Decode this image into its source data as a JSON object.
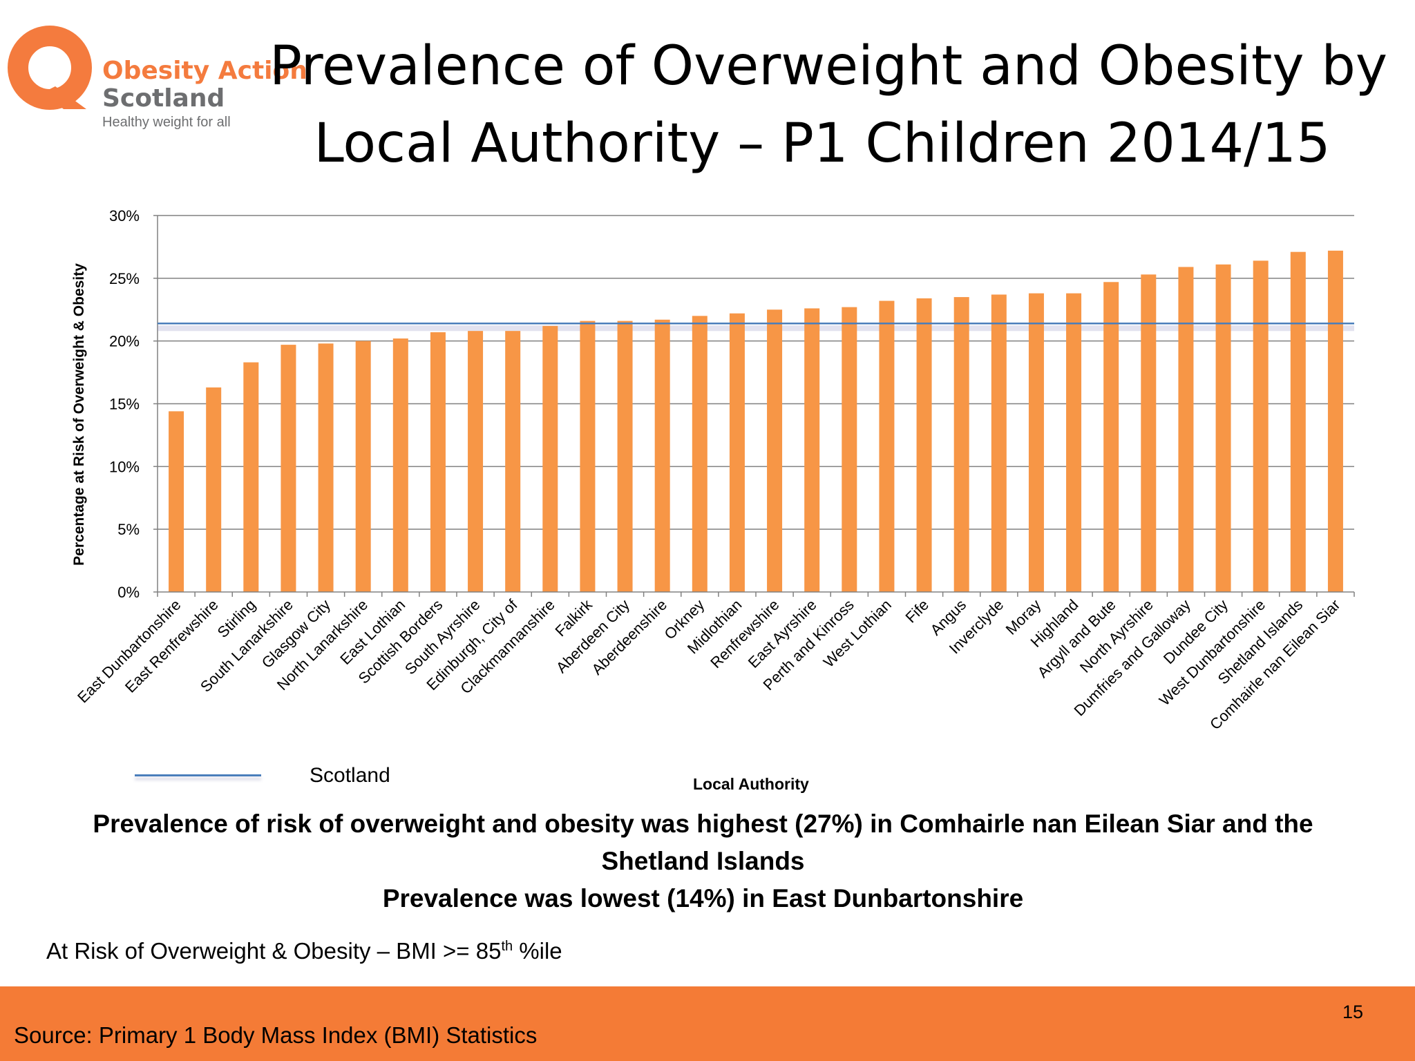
{
  "logo": {
    "name_line1": "Obesity Action",
    "name_line2": "Scotland",
    "tagline": "Healthy weight for all"
  },
  "title": {
    "line1": "Prevalence of Overweight and Obesity by",
    "line2": "Local Authority – P1 Children 2014/15"
  },
  "chart_data": {
    "type": "bar",
    "title": "Prevalence of Overweight and Obesity by Local Authority – P1 Children 2014/15",
    "xlabel": "Local Authority",
    "ylabel": "Percentage at Risk of Overweight & Obesity",
    "ylim": [
      0,
      30
    ],
    "yticks": [
      "0%",
      "5%",
      "10%",
      "15%",
      "20%",
      "25%",
      "30%"
    ],
    "grid": true,
    "categories": [
      "East Dunbartonshire",
      "East Renfrewshire",
      "Stirling",
      "South Lanarkshire",
      "Glasgow City",
      "North Lanarkshire",
      "East Lothian",
      "Scottish Borders",
      "South Ayrshire",
      "Edinburgh, City of",
      "Clackmannanshire",
      "Falkirk",
      "Aberdeen City",
      "Aberdeenshire",
      "Orkney",
      "Midlothian",
      "Renfrewshire",
      "East Ayrshire",
      "Perth and Kinross",
      "West Lothian",
      "Fife",
      "Angus",
      "Inverclyde",
      "Moray",
      "Highland",
      "Argyll and Bute",
      "North Ayrshire",
      "Dumfries and Galloway",
      "Dundee City",
      "West Dunbartonshire",
      "Shetland Islands",
      "Comhairle nan Eilean Siar"
    ],
    "values": [
      14.4,
      16.3,
      18.3,
      19.7,
      19.8,
      20.0,
      20.2,
      20.7,
      20.8,
      20.8,
      21.2,
      21.6,
      21.6,
      21.7,
      22.0,
      22.2,
      22.5,
      22.6,
      22.7,
      23.2,
      23.4,
      23.5,
      23.7,
      23.8,
      23.8,
      24.7,
      25.3,
      25.9,
      26.1,
      26.4,
      27.1,
      27.2
    ],
    "reference_line": {
      "name": "Scotland",
      "value": 21.4
    },
    "legend": "bottom-left",
    "colors": {
      "bars": "#f79646",
      "reference_line": "#4a7ebb",
      "grid": "#808080"
    }
  },
  "summary": {
    "line1": "Prevalence of risk of overweight and obesity was highest (27%) in Comhairle nan Eilean Siar and the",
    "line2": "Shetland Islands",
    "line3": "Prevalence was lowest (14%) in East Dunbartonshire"
  },
  "footnote": {
    "text": "At Risk of Overweight & Obesity – BMI >= 85",
    "superscript": "th",
    "suffix": " %ile"
  },
  "footer": {
    "source": "Source: Primary 1 Body Mass Index (BMI) Statistics",
    "page_number": "15"
  }
}
